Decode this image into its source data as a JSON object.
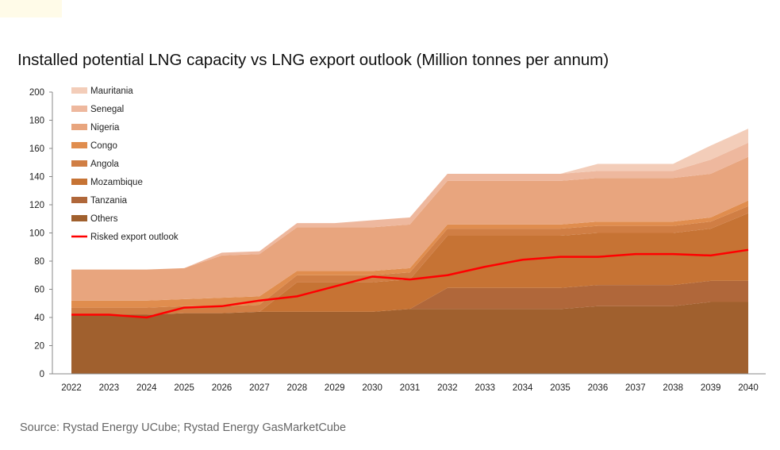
{
  "title": "Installed potential LNG capacity vs LNG export outlook (Million tonnes per annum)",
  "source": "Source: Rystad Energy UCube; Rystad Energy GasMarketCube",
  "chart_data": {
    "type": "area",
    "title": "Installed potential LNG capacity vs LNG export outlook (Million tonnes per annum)",
    "xlabel": "",
    "ylabel": "",
    "ylim": [
      0,
      200
    ],
    "yticks": [
      0,
      20,
      40,
      60,
      80,
      100,
      120,
      140,
      160,
      180,
      200
    ],
    "grid": false,
    "legend_position": "top-left",
    "stacked": true,
    "x": [
      "2022",
      "2023",
      "2024",
      "2025",
      "2026",
      "2027",
      "2028",
      "2029",
      "2030",
      "2031",
      "2032",
      "2033",
      "2034",
      "2035",
      "2036",
      "2037",
      "2038",
      "2039",
      "2040"
    ],
    "series": [
      {
        "name": "Others",
        "color": "#a0602e",
        "values": [
          42,
          42,
          42,
          43,
          43,
          44,
          44,
          44,
          44,
          46,
          46,
          46,
          46,
          46,
          48,
          48,
          48,
          51,
          51
        ]
      },
      {
        "name": "Tanzania",
        "color": "#b0673a",
        "values": [
          0,
          0,
          0,
          0,
          0,
          0,
          0,
          0,
          0,
          0,
          15,
          15,
          15,
          15,
          15,
          15,
          15,
          15,
          15
        ]
      },
      {
        "name": "Mozambique",
        "color": "#c67334",
        "values": [
          0,
          0,
          0,
          0,
          0,
          0,
          21,
          21,
          21,
          21,
          37,
          37,
          37,
          37,
          37,
          37,
          37,
          37,
          48
        ]
      },
      {
        "name": "Angola",
        "color": "#d07e44",
        "values": [
          5,
          5,
          5,
          5,
          5,
          5,
          5,
          5,
          5,
          5,
          5,
          5,
          5,
          5,
          5,
          5,
          5,
          5,
          5
        ]
      },
      {
        "name": "Congo",
        "color": "#e08d4e",
        "values": [
          5,
          5,
          5,
          5,
          6,
          6,
          3,
          3,
          3,
          3,
          3,
          3,
          3,
          3,
          3,
          3,
          3,
          3,
          4
        ]
      },
      {
        "name": "Nigeria",
        "color": "#e8a57e",
        "values": [
          22,
          22,
          22,
          22,
          30,
          30,
          31,
          31,
          31,
          31,
          31,
          31,
          31,
          31,
          31,
          31,
          31,
          31,
          31
        ]
      },
      {
        "name": "Senegal",
        "color": "#eeb89e",
        "values": [
          0,
          0,
          0,
          0,
          2,
          2,
          3,
          3,
          5,
          5,
          5,
          5,
          5,
          5,
          5,
          5,
          5,
          10,
          10
        ]
      },
      {
        "name": "Mauritania",
        "color": "#f3cdb9",
        "values": [
          0,
          0,
          0,
          0,
          0,
          0,
          0,
          0,
          0,
          0,
          0,
          0,
          0,
          0,
          5,
          5,
          5,
          10,
          10
        ]
      }
    ],
    "line_series": {
      "name": "Risked export outlook",
      "color": "#ff0000",
      "values": [
        42,
        42,
        40,
        47,
        48,
        52,
        55,
        62,
        69,
        67,
        70,
        76,
        81,
        83,
        83,
        85,
        85,
        84,
        88
      ]
    }
  }
}
